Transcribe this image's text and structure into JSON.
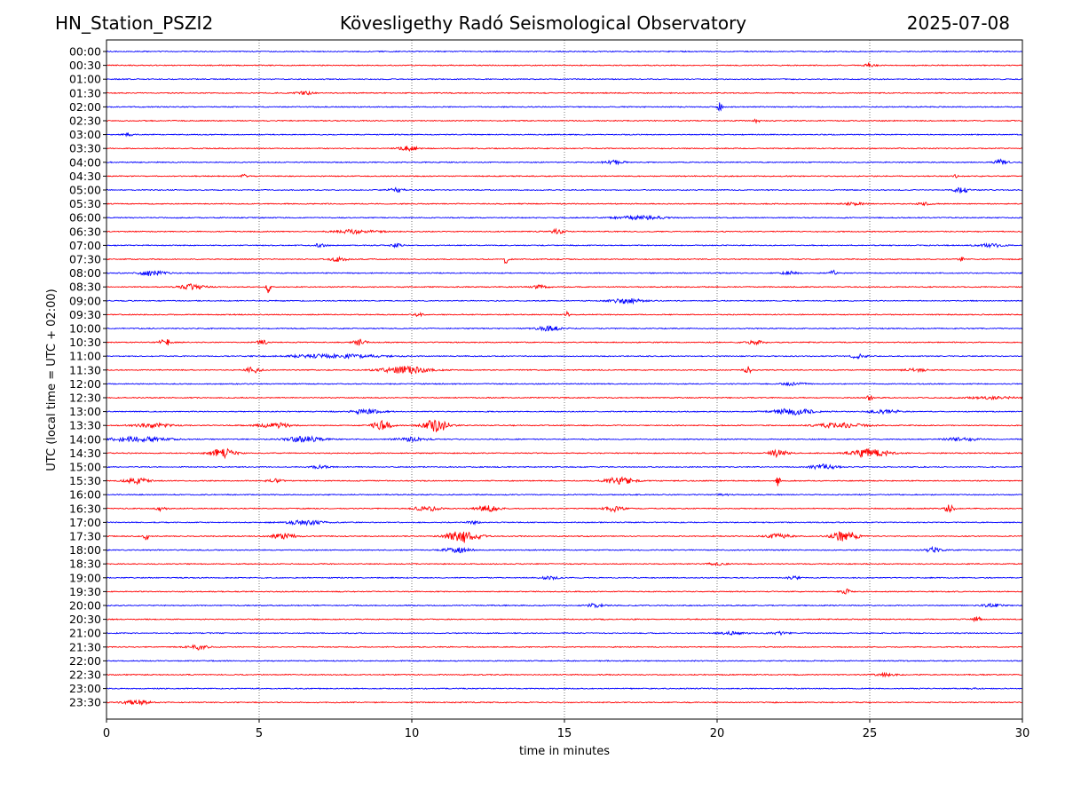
{
  "header": {
    "station": "HN_Station_PSZI2",
    "observatory": "Kövesligethy Radó Seismological Observatory",
    "date": "2025-07-08"
  },
  "chart_data": {
    "type": "line",
    "title": "Kövesligethy Radó Seismological Observatory",
    "xlabel": "time in minutes",
    "ylabel": "UTC (local time = UTC + 02:00)",
    "xlim": [
      0,
      30
    ],
    "xticks": [
      "0",
      "5",
      "10",
      "15",
      "20",
      "25",
      "30"
    ],
    "grid": "vertical dotted at each 5 minutes",
    "colors": {
      "even_rows": "#0000ff",
      "odd_rows": "#ff0000",
      "grid": "#555555"
    },
    "rows": [
      {
        "label": "00:00",
        "bursts": []
      },
      {
        "label": "00:30",
        "bursts": [
          [
            25,
            0.3,
            3
          ]
        ]
      },
      {
        "label": "01:00",
        "bursts": []
      },
      {
        "label": "01:30",
        "bursts": [
          [
            6.5,
            0.6,
            1.5
          ]
        ]
      },
      {
        "label": "02:00",
        "bursts": [
          [
            20.1,
            0.15,
            5
          ]
        ]
      },
      {
        "label": "02:30",
        "bursts": [
          [
            21.3,
            0.2,
            2
          ]
        ]
      },
      {
        "label": "03:00",
        "bursts": [
          [
            0.7,
            0.3,
            2
          ]
        ]
      },
      {
        "label": "03:30",
        "bursts": [
          [
            9.9,
            0.6,
            2.5
          ]
        ]
      },
      {
        "label": "04:00",
        "bursts": [
          [
            16.6,
            0.7,
            2
          ],
          [
            29.3,
            0.4,
            3
          ]
        ]
      },
      {
        "label": "04:30",
        "bursts": [
          [
            4.5,
            0.2,
            2
          ],
          [
            27.8,
            0.2,
            2
          ]
        ]
      },
      {
        "label": "05:00",
        "bursts": [
          [
            9.5,
            0.5,
            2
          ],
          [
            28.0,
            0.4,
            4
          ]
        ]
      },
      {
        "label": "05:30",
        "bursts": [
          [
            24.5,
            0.6,
            1.5
          ],
          [
            26.8,
            0.5,
            1.5
          ]
        ]
      },
      {
        "label": "06:00",
        "bursts": [
          [
            17.5,
            1.5,
            2
          ]
        ]
      },
      {
        "label": "06:30",
        "bursts": [
          [
            8.2,
            1.5,
            2
          ],
          [
            14.8,
            0.4,
            3
          ]
        ]
      },
      {
        "label": "07:00",
        "bursts": [
          [
            7.0,
            0.4,
            2
          ],
          [
            9.5,
            0.4,
            2
          ],
          [
            29.0,
            0.8,
            2
          ]
        ]
      },
      {
        "label": "07:30",
        "bursts": [
          [
            7.6,
            0.5,
            2.5
          ],
          [
            13.1,
            0.12,
            8
          ],
          [
            28.0,
            0.2,
            2
          ]
        ]
      },
      {
        "label": "08:00",
        "bursts": [
          [
            1.5,
            0.8,
            3
          ],
          [
            22.4,
            0.5,
            2
          ],
          [
            23.8,
            0.2,
            3
          ]
        ]
      },
      {
        "label": "08:30",
        "bursts": [
          [
            2.8,
            0.8,
            3
          ],
          [
            5.3,
            0.12,
            8
          ],
          [
            14.2,
            0.5,
            2
          ]
        ]
      },
      {
        "label": "09:00",
        "bursts": [
          [
            17.0,
            1.0,
            3
          ]
        ]
      },
      {
        "label": "09:30",
        "bursts": [
          [
            10.2,
            0.3,
            2
          ],
          [
            15.1,
            0.15,
            3
          ]
        ]
      },
      {
        "label": "10:00",
        "bursts": [
          [
            14.5,
            0.8,
            2.5
          ]
        ]
      },
      {
        "label": "10:30",
        "bursts": [
          [
            1.9,
            0.4,
            4
          ],
          [
            5.1,
            0.3,
            3
          ],
          [
            8.3,
            0.4,
            3.5
          ],
          [
            21.2,
            0.7,
            2
          ]
        ]
      },
      {
        "label": "11:00",
        "bursts": [
          [
            7.5,
            3.0,
            2
          ],
          [
            24.6,
            0.5,
            2.5
          ]
        ]
      },
      {
        "label": "11:30",
        "bursts": [
          [
            4.8,
            0.5,
            3
          ],
          [
            9.8,
            1.5,
            4
          ],
          [
            21.0,
            0.2,
            5
          ],
          [
            26.5,
            0.7,
            2
          ]
        ]
      },
      {
        "label": "12:00",
        "bursts": [
          [
            22.5,
            0.8,
            1.5
          ]
        ]
      },
      {
        "label": "12:30",
        "bursts": [
          [
            25.0,
            0.2,
            3
          ],
          [
            29.0,
            1.5,
            1.5
          ]
        ]
      },
      {
        "label": "13:00",
        "bursts": [
          [
            8.5,
            1.0,
            2.5
          ],
          [
            22.5,
            1.3,
            3.5
          ],
          [
            25.5,
            1.0,
            2
          ]
        ]
      },
      {
        "label": "13:30",
        "bursts": [
          [
            1.5,
            1.2,
            2.5
          ],
          [
            5.5,
            1.0,
            3
          ],
          [
            9.0,
            0.6,
            5
          ],
          [
            10.8,
            0.8,
            7
          ],
          [
            24.0,
            1.5,
            3
          ]
        ]
      },
      {
        "label": "14:00",
        "bursts": [
          [
            1.0,
            2.0,
            2.5
          ],
          [
            6.5,
            1.2,
            3
          ],
          [
            10.0,
            1.0,
            2
          ],
          [
            28.0,
            1.0,
            2
          ]
        ]
      },
      {
        "label": "14:30",
        "bursts": [
          [
            3.8,
            0.8,
            5
          ],
          [
            22.0,
            0.6,
            4
          ],
          [
            25.0,
            1.2,
            5
          ]
        ]
      },
      {
        "label": "15:00",
        "bursts": [
          [
            7.0,
            0.6,
            1.5
          ],
          [
            23.5,
            0.8,
            3
          ]
        ]
      },
      {
        "label": "15:30",
        "bursts": [
          [
            1.0,
            0.8,
            3
          ],
          [
            5.5,
            0.5,
            2
          ],
          [
            16.8,
            0.9,
            4
          ],
          [
            22.0,
            0.12,
            6
          ]
        ]
      },
      {
        "label": "16:00",
        "bursts": [
          [
            20.2,
            0.3,
            1.5
          ]
        ]
      },
      {
        "label": "16:30",
        "bursts": [
          [
            1.8,
            0.3,
            2.5
          ],
          [
            10.5,
            0.8,
            3
          ],
          [
            12.5,
            0.8,
            3
          ],
          [
            16.6,
            0.6,
            3.5
          ],
          [
            27.6,
            0.3,
            4
          ]
        ]
      },
      {
        "label": "17:00",
        "bursts": [
          [
            6.5,
            1.2,
            2.5
          ],
          [
            12.0,
            0.4,
            2
          ]
        ]
      },
      {
        "label": "17:30",
        "bursts": [
          [
            1.3,
            0.15,
            4
          ],
          [
            5.8,
            0.8,
            3
          ],
          [
            11.7,
            1.0,
            7
          ],
          [
            22.0,
            0.8,
            2.5
          ],
          [
            24.2,
            0.8,
            6
          ]
        ]
      },
      {
        "label": "18:00",
        "bursts": [
          [
            11.5,
            0.8,
            3
          ],
          [
            27.1,
            0.5,
            3
          ]
        ]
      },
      {
        "label": "18:30",
        "bursts": [
          [
            20.0,
            0.5,
            1.5
          ]
        ]
      },
      {
        "label": "19:00",
        "bursts": [
          [
            14.5,
            0.6,
            2
          ],
          [
            22.5,
            0.5,
            1.5
          ]
        ]
      },
      {
        "label": "19:30",
        "bursts": [
          [
            24.2,
            0.3,
            3
          ]
        ]
      },
      {
        "label": "20:00",
        "bursts": [
          [
            16.0,
            0.6,
            2
          ],
          [
            29.0,
            0.6,
            2
          ]
        ]
      },
      {
        "label": "20:30",
        "bursts": [
          [
            28.5,
            0.3,
            3
          ]
        ]
      },
      {
        "label": "21:00",
        "bursts": [
          [
            20.5,
            1.0,
            1.5
          ],
          [
            22.0,
            0.6,
            1.5
          ]
        ]
      },
      {
        "label": "21:30",
        "bursts": [
          [
            3.0,
            0.6,
            3
          ]
        ]
      },
      {
        "label": "22:00",
        "bursts": []
      },
      {
        "label": "22:30",
        "bursts": [
          [
            25.5,
            0.7,
            1.5
          ]
        ]
      },
      {
        "label": "23:00",
        "bursts": [
          [
            28.5,
            0.3,
            1.2
          ]
        ]
      },
      {
        "label": "23:30",
        "bursts": [
          [
            1.0,
            0.8,
            2.5
          ]
        ]
      }
    ]
  }
}
